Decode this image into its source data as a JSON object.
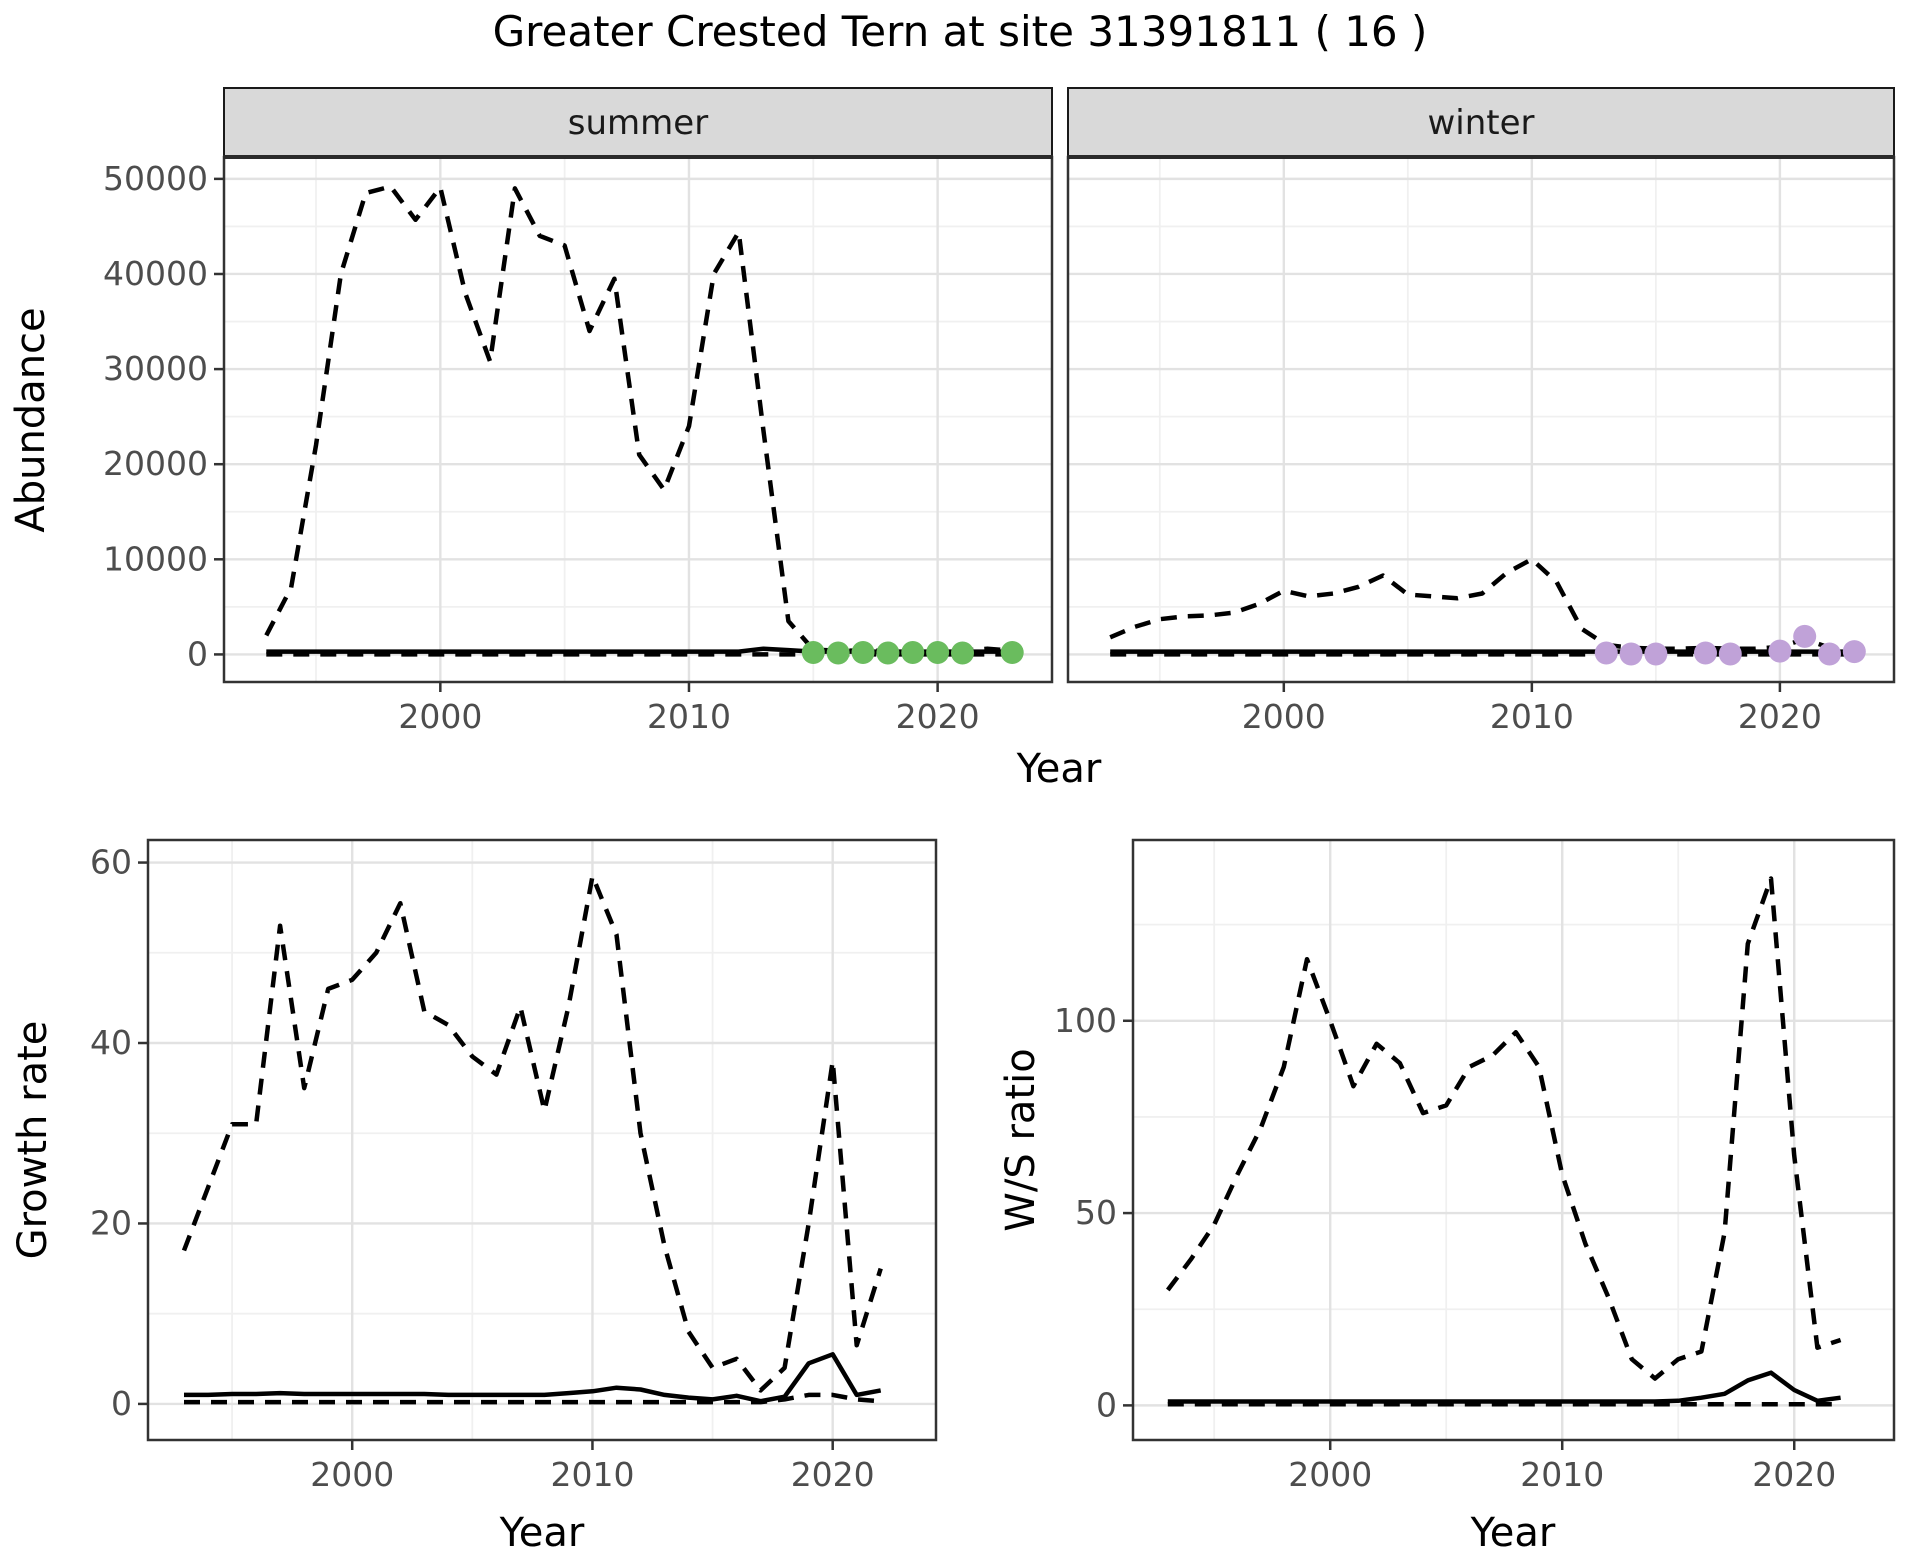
{
  "title": "Greater Crested Tern at site 31391811 ( 16 )",
  "colors": {
    "summer_points": "#6abc5e",
    "winter_points": "#c0a2d8",
    "line": "#000000",
    "strip_bg": "#d9d9d9",
    "panel_bg": "#ffffff",
    "panel_border": "#333333",
    "grid_major": "#e2e2e2",
    "grid_minor": "#f0f0f0",
    "tick_label": "#4d4d4d",
    "tick_mark": "#333333"
  },
  "chart_data": [
    {
      "type": "line",
      "facet": "summer",
      "xlabel": "Year",
      "ylabel": "Abundance",
      "xlim": [
        1991.3,
        2024.6
      ],
      "ylim": [
        -2900,
        52300
      ],
      "xticks": [
        2000,
        2010,
        2020
      ],
      "xticks_minor": [
        1995,
        2005,
        2015
      ],
      "yticks": [
        0,
        10000,
        20000,
        30000,
        40000,
        50000
      ],
      "yticks_minor": [
        5000,
        15000,
        25000,
        35000,
        45000
      ],
      "grid": true,
      "years": [
        1993,
        1994,
        1995,
        1996,
        1997,
        1998,
        1999,
        2000,
        2001,
        2002,
        2003,
        2004,
        2005,
        2006,
        2007,
        2008,
        2009,
        2010,
        2011,
        2012,
        2013,
        2014,
        2015,
        2016,
        2017,
        2018,
        2019,
        2020,
        2021,
        2022,
        2023
      ],
      "series": [
        {
          "name": "upper_ci",
          "style": "dashed",
          "values": [
            2000,
            7000,
            22000,
            40000,
            48500,
            49200,
            45700,
            49100,
            38000,
            30800,
            49000,
            44000,
            43000,
            34000,
            39500,
            21000,
            17300,
            24000,
            40000,
            44400,
            23400,
            3500,
            500,
            400,
            400,
            400,
            400,
            400,
            400,
            600,
            400
          ]
        },
        {
          "name": "median",
          "style": "solid",
          "values": [
            300,
            300,
            300,
            300,
            300,
            300,
            300,
            300,
            300,
            300,
            300,
            300,
            300,
            300,
            300,
            300,
            300,
            300,
            300,
            300,
            600,
            450,
            300,
            300,
            300,
            300,
            300,
            300,
            300,
            300,
            300
          ]
        },
        {
          "name": "lower_ci",
          "style": "dashed",
          "values": [
            0,
            0,
            0,
            0,
            0,
            0,
            0,
            0,
            0,
            0,
            0,
            0,
            0,
            0,
            0,
            0,
            0,
            0,
            0,
            0,
            0,
            0,
            0,
            0,
            0,
            0,
            0,
            0,
            0,
            0,
            0
          ]
        },
        {
          "name": "observations",
          "style": "points",
          "color_key": "summer_points",
          "x": [
            2015,
            2016,
            2017,
            2018,
            2019,
            2020,
            2021,
            2023
          ],
          "values": [
            200,
            150,
            200,
            150,
            200,
            200,
            150,
            200
          ]
        }
      ]
    },
    {
      "type": "line",
      "facet": "winter",
      "xlabel": "Year",
      "ylabel": "Abundance",
      "xlim": [
        1991.3,
        2024.6
      ],
      "ylim": [
        -2900,
        52300
      ],
      "xticks": [
        2000,
        2010,
        2020
      ],
      "xticks_minor": [
        1995,
        2005,
        2015
      ],
      "yticks": [
        0,
        10000,
        20000,
        30000,
        40000,
        50000
      ],
      "yticks_minor": [
        5000,
        15000,
        25000,
        35000,
        45000
      ],
      "grid": true,
      "years": [
        1993,
        1994,
        1995,
        1996,
        1997,
        1998,
        1999,
        2000,
        2001,
        2002,
        2003,
        2004,
        2005,
        2006,
        2007,
        2008,
        2009,
        2010,
        2011,
        2012,
        2013,
        2014,
        2015,
        2016,
        2017,
        2018,
        2019,
        2020,
        2021,
        2022,
        2023
      ],
      "series": [
        {
          "name": "upper_ci",
          "style": "dashed",
          "values": [
            1800,
            2900,
            3700,
            4000,
            4100,
            4400,
            5300,
            6700,
            6100,
            6400,
            7100,
            8300,
            6300,
            6100,
            5900,
            6400,
            8600,
            10000,
            7600,
            2700,
            1000,
            700,
            600,
            600,
            700,
            600,
            600,
            800,
            1600,
            700,
            800
          ]
        },
        {
          "name": "median",
          "style": "solid",
          "values": [
            300,
            300,
            300,
            300,
            300,
            300,
            300,
            300,
            300,
            300,
            300,
            300,
            300,
            300,
            300,
            300,
            300,
            300,
            300,
            300,
            300,
            300,
            300,
            300,
            300,
            300,
            300,
            300,
            300,
            300,
            300
          ]
        },
        {
          "name": "lower_ci",
          "style": "dashed",
          "values": [
            0,
            0,
            0,
            0,
            0,
            0,
            0,
            0,
            0,
            0,
            0,
            0,
            0,
            0,
            0,
            0,
            0,
            0,
            0,
            0,
            0,
            0,
            0,
            0,
            0,
            0,
            0,
            0,
            0,
            0,
            0
          ]
        },
        {
          "name": "observations",
          "style": "points",
          "color_key": "winter_points",
          "x": [
            2013,
            2014,
            2015,
            2017,
            2018,
            2020,
            2021,
            2022,
            2023
          ],
          "values": [
            150,
            50,
            50,
            150,
            50,
            350,
            1900,
            50,
            300
          ]
        }
      ]
    },
    {
      "type": "line",
      "facet": null,
      "xlabel": "Year",
      "ylabel": "Growth rate",
      "xlim": [
        1991.5,
        2024.3
      ],
      "ylim": [
        -4,
        62.5
      ],
      "xticks": [
        2000,
        2010,
        2020
      ],
      "xticks_minor": [
        1995,
        2005,
        2015
      ],
      "yticks": [
        0,
        20,
        40,
        60
      ],
      "yticks_minor": [
        10,
        30,
        50
      ],
      "grid": true,
      "years": [
        1993,
        1994,
        1995,
        1996,
        1997,
        1998,
        1999,
        2000,
        2001,
        2002,
        2003,
        2004,
        2005,
        2006,
        2007,
        2008,
        2009,
        2010,
        2011,
        2012,
        2013,
        2014,
        2015,
        2016,
        2017,
        2018,
        2019,
        2020,
        2021,
        2022
      ],
      "series": [
        {
          "name": "upper_ci",
          "style": "dashed",
          "values": [
            17,
            24,
            31,
            31,
            53,
            35,
            46,
            47,
            50,
            55.5,
            43.5,
            42,
            38.5,
            36.5,
            44,
            32.5,
            44,
            58.5,
            52,
            30,
            17.5,
            8,
            4,
            5,
            1.5,
            4,
            20,
            38,
            6.5,
            15
          ]
        },
        {
          "name": "median",
          "style": "solid",
          "values": [
            1,
            1,
            1.1,
            1.1,
            1.2,
            1.1,
            1.1,
            1.1,
            1.1,
            1.1,
            1.1,
            1,
            1,
            1,
            1,
            1,
            1.2,
            1.4,
            1.8,
            1.6,
            1,
            0.7,
            0.5,
            0.9,
            0.3,
            0.8,
            4.5,
            5.5,
            1,
            1.5
          ]
        },
        {
          "name": "lower_ci",
          "style": "dashed",
          "values": [
            0.2,
            0.2,
            0.2,
            0.2,
            0.2,
            0.2,
            0.2,
            0.2,
            0.2,
            0.2,
            0.2,
            0.2,
            0.2,
            0.2,
            0.2,
            0.2,
            0.2,
            0.2,
            0.2,
            0.2,
            0.2,
            0.2,
            0.2,
            0.2,
            0.2,
            0.5,
            1,
            1,
            0.5,
            0.3
          ]
        }
      ]
    },
    {
      "type": "line",
      "facet": null,
      "xlabel": "Year",
      "ylabel": "W/S ratio",
      "xlim": [
        1991.5,
        2024.3
      ],
      "ylim": [
        -9,
        147
      ],
      "xticks": [
        2000,
        2010,
        2020
      ],
      "xticks_minor": [
        1995,
        2005,
        2015
      ],
      "yticks": [
        0,
        50,
        100
      ],
      "yticks_minor": [
        25,
        75,
        125
      ],
      "grid": true,
      "years": [
        1993,
        1994,
        1995,
        1996,
        1997,
        1998,
        1999,
        2000,
        2001,
        2002,
        2003,
        2004,
        2005,
        2006,
        2007,
        2008,
        2009,
        2010,
        2011,
        2012,
        2013,
        2014,
        2015,
        2016,
        2017,
        2018,
        2019,
        2020,
        2021,
        2022
      ],
      "series": [
        {
          "name": "upper_ci",
          "style": "dashed",
          "values": [
            30,
            38,
            47,
            60,
            72,
            88,
            116,
            100,
            83,
            94,
            89,
            76,
            78,
            88,
            91,
            97,
            88,
            60,
            42,
            28,
            12,
            7,
            12,
            14,
            45,
            120,
            137,
            65,
            15,
            17
          ]
        },
        {
          "name": "median",
          "style": "solid",
          "values": [
            1,
            1,
            1,
            1,
            1,
            1,
            1,
            1,
            1,
            1,
            1,
            1,
            1,
            1,
            1,
            1,
            1,
            1,
            1,
            1,
            1,
            1,
            1.2,
            2,
            3,
            6.5,
            8.5,
            4,
            1.2,
            2
          ]
        },
        {
          "name": "lower_ci",
          "style": "dashed",
          "values": [
            0.3,
            0.3,
            0.3,
            0.3,
            0.3,
            0.3,
            0.3,
            0.3,
            0.3,
            0.3,
            0.3,
            0.3,
            0.3,
            0.3,
            0.3,
            0.3,
            0.3,
            0.3,
            0.3,
            0.3,
            0.3,
            0.3,
            0.3,
            0.3,
            0.3,
            0.3,
            0.3,
            0.3,
            0.3,
            0.3
          ]
        }
      ]
    }
  ]
}
